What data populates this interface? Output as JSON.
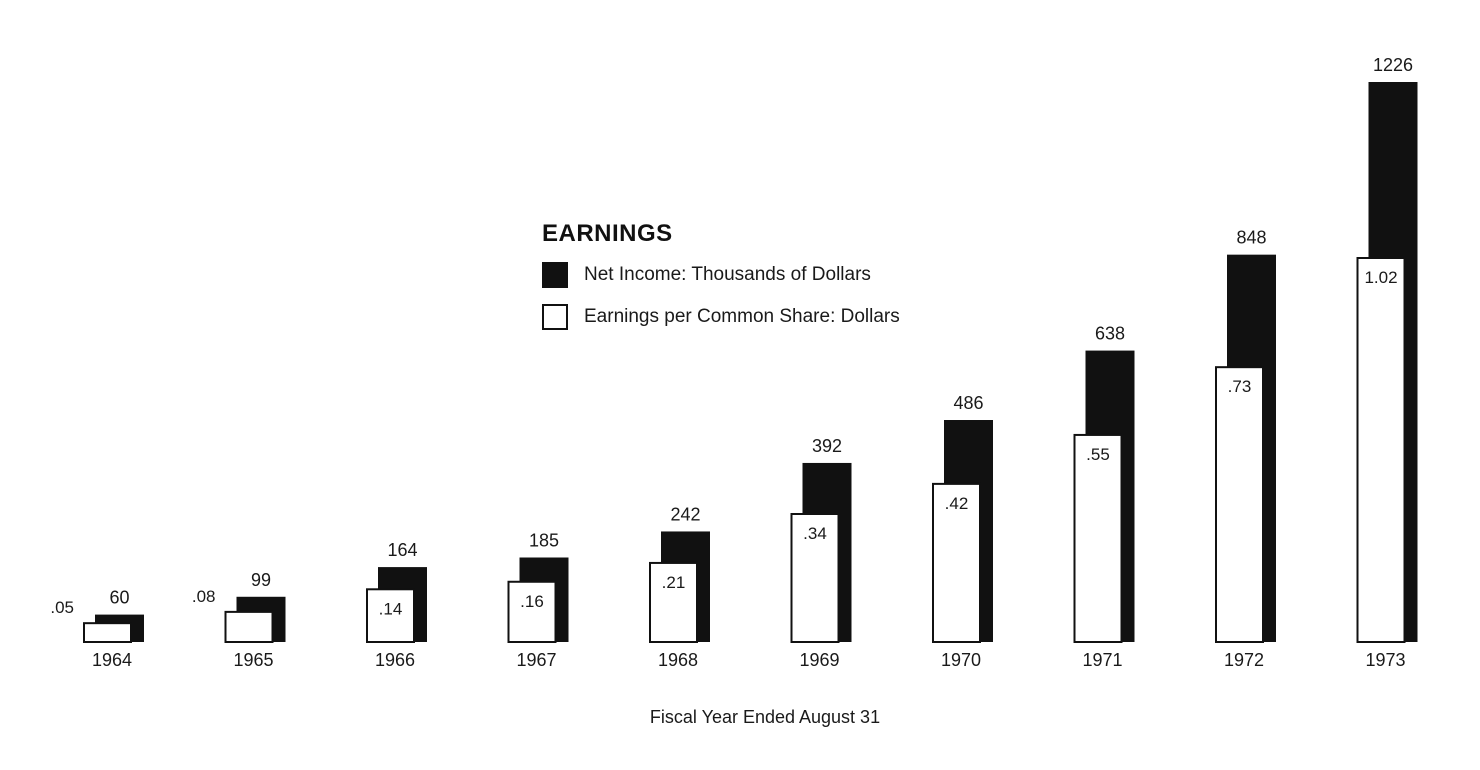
{
  "chart_data": {
    "type": "bar",
    "title": "EARNINGS",
    "xlabel": "Fiscal Year Ended August 31",
    "categories": [
      "1964",
      "1965",
      "1966",
      "1967",
      "1968",
      "1969",
      "1970",
      "1971",
      "1972",
      "1973"
    ],
    "series": [
      {
        "name": "Net Income: Thousands of Dollars",
        "values": [
          60,
          99,
          164,
          185,
          242,
          392,
          486,
          638,
          848,
          1226
        ],
        "labels": [
          "60",
          "99",
          "164",
          "185",
          "242",
          "392",
          "486",
          "638",
          "848",
          "1226"
        ],
        "color": "#111111",
        "style": "filled",
        "scale_max": 1226
      },
      {
        "name": "Earnings per Common Share: Dollars",
        "values": [
          0.05,
          0.08,
          0.14,
          0.16,
          0.21,
          0.34,
          0.42,
          0.55,
          0.73,
          1.02
        ],
        "labels": [
          ".05",
          ".08",
          ".14",
          ".16",
          ".21",
          ".34",
          ".42",
          ".55",
          ".73",
          "1.02"
        ],
        "color": "#ffffff",
        "outline": "#111111",
        "style": "outline",
        "scale_max": 1.02
      }
    ],
    "grid": false,
    "axes_visible": false,
    "legend_position": "center"
  }
}
